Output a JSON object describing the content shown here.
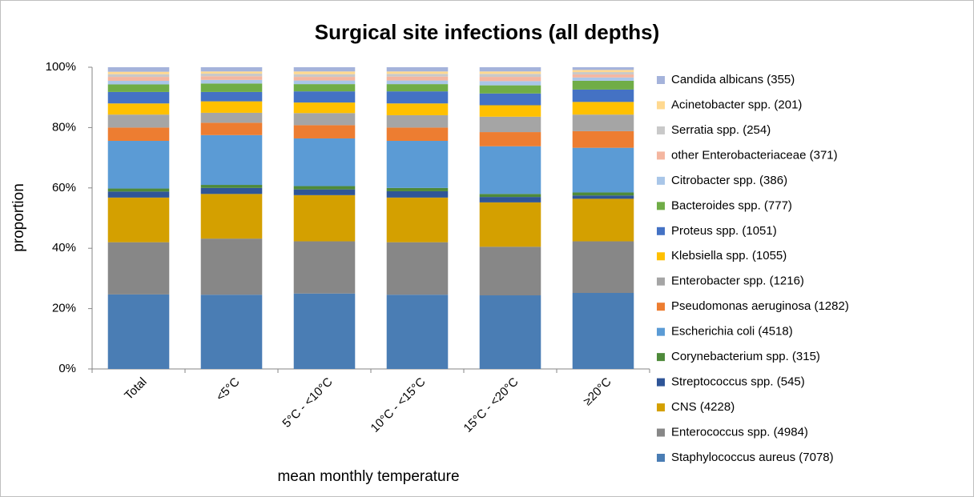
{
  "chart_data": {
    "type": "stacked_bar",
    "title": "Surgical site infections (all depths)",
    "x_label": "mean monthly temperature",
    "y_label": "proportion",
    "categories": [
      "Total",
      "<5°C",
      "5°C - <10°C",
      "10°C - <15°C",
      "15°C - <20°C",
      "≥20°C"
    ],
    "ylim": [
      0,
      100
    ],
    "yticks": [
      {
        "value": 0,
        "label": "0%"
      },
      {
        "value": 20,
        "label": "20%"
      },
      {
        "value": 40,
        "label": "40%"
      },
      {
        "value": 60,
        "label": "60%"
      },
      {
        "value": 80,
        "label": "80%"
      },
      {
        "value": 100,
        "label": "100%"
      }
    ],
    "legend": "right",
    "series": [
      {
        "name": "Staphylococcus aureus (7078)",
        "color": "#4a7db4",
        "values": [
          24.7,
          24.6,
          25.0,
          24.6,
          24.4,
          25.2
        ]
      },
      {
        "name": "Enterococcus spp. (4984)",
        "color": "#878787",
        "values": [
          17.3,
          18.6,
          17.3,
          17.4,
          16.1,
          17.1
        ]
      },
      {
        "name": "CNS (4228)",
        "color": "#d4a000",
        "values": [
          14.8,
          14.8,
          15.3,
          14.8,
          14.7,
          14.1
        ]
      },
      {
        "name": "Streptococcus spp. (545)",
        "color": "#2f5597",
        "values": [
          2.0,
          2.0,
          1.9,
          2.1,
          1.8,
          1.1
        ]
      },
      {
        "name": "Corynebacterium spp. (315)",
        "color": "#4e8a3a",
        "values": [
          1.0,
          1.0,
          1.1,
          1.1,
          1.0,
          1.0
        ]
      },
      {
        "name": "Escherichia coli (4518)",
        "color": "#5b9bd5",
        "values": [
          15.8,
          16.5,
          15.8,
          15.6,
          15.8,
          14.8
        ]
      },
      {
        "name": "Pseudomonas aeruginosa (1282)",
        "color": "#ed7d31",
        "values": [
          4.4,
          4.1,
          4.4,
          4.4,
          4.7,
          5.5
        ]
      },
      {
        "name": "Enterobacter spp. (1216)",
        "color": "#a5a5a5",
        "values": [
          4.3,
          3.3,
          4.0,
          4.1,
          5.1,
          5.5
        ]
      },
      {
        "name": "Klebsiella spp. (1055)",
        "color": "#ffc000",
        "values": [
          3.7,
          3.8,
          3.5,
          3.9,
          3.8,
          4.2
        ]
      },
      {
        "name": "Proteus spp. (1051)",
        "color": "#4472c4",
        "values": [
          3.8,
          3.1,
          3.7,
          4.0,
          3.9,
          4.1
        ]
      },
      {
        "name": "Bacteroides spp. (777)",
        "color": "#70ad47",
        "values": [
          2.5,
          2.8,
          2.4,
          2.4,
          2.7,
          2.9
        ]
      },
      {
        "name": "Citrobacter spp. (386)",
        "color": "#a9c6e8",
        "values": [
          1.2,
          1.2,
          1.2,
          1.2,
          1.4,
          1.1
        ]
      },
      {
        "name": "other Enterobacteriaceae (371)",
        "color": "#f4b6a0",
        "values": [
          1.3,
          1.2,
          1.2,
          1.3,
          1.4,
          1.0
        ]
      },
      {
        "name": "Serratia spp. (254)",
        "color": "#c9c9c9",
        "values": [
          0.9,
          0.9,
          0.9,
          0.9,
          1.0,
          0.8
        ]
      },
      {
        "name": "Acinetobacter spp. (201)",
        "color": "#ffd990",
        "values": [
          0.8,
          0.7,
          0.9,
          0.8,
          0.8,
          0.7
        ]
      },
      {
        "name": "Candida albicans (355)",
        "color": "#a5b3db",
        "values": [
          1.5,
          1.4,
          1.4,
          1.4,
          1.4,
          0.9
        ]
      }
    ]
  }
}
